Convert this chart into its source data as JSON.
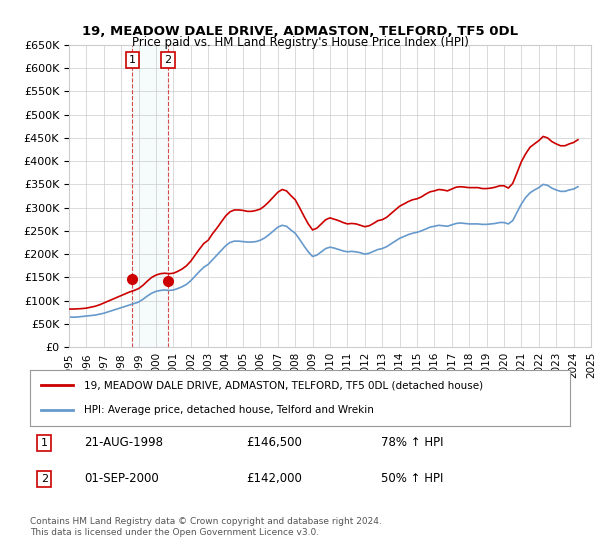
{
  "title": "19, MEADOW DALE DRIVE, ADMASTON, TELFORD, TF5 0DL",
  "subtitle": "Price paid vs. HM Land Registry's House Price Index (HPI)",
  "legend_line1": "19, MEADOW DALE DRIVE, ADMASTON, TELFORD, TF5 0DL (detached house)",
  "legend_line2": "HPI: Average price, detached house, Telford and Wrekin",
  "footer1": "Contains HM Land Registry data © Crown copyright and database right 2024.",
  "footer2": "This data is licensed under the Open Government Licence v3.0.",
  "annotation1_label": "1",
  "annotation1_date": "21-AUG-1998",
  "annotation1_price": "£146,500",
  "annotation1_hpi": "78% ↑ HPI",
  "annotation2_label": "2",
  "annotation2_date": "01-SEP-2000",
  "annotation2_price": "£142,000",
  "annotation2_hpi": "50% ↑ HPI",
  "sale1_year": 1998.64,
  "sale1_price": 146500,
  "sale2_year": 2000.67,
  "sale2_price": 142000,
  "red_color": "#cc0000",
  "blue_color": "#6699cc",
  "background_color": "#ffffff",
  "grid_color": "#cccccc",
  "ylim": [
    0,
    650000
  ],
  "yticks": [
    0,
    50000,
    100000,
    150000,
    200000,
    250000,
    300000,
    350000,
    400000,
    450000,
    500000,
    550000,
    600000,
    650000
  ],
  "hpi_data": {
    "years": [
      1995.0,
      1995.25,
      1995.5,
      1995.75,
      1996.0,
      1996.25,
      1996.5,
      1996.75,
      1997.0,
      1997.25,
      1997.5,
      1997.75,
      1998.0,
      1998.25,
      1998.5,
      1998.75,
      1999.0,
      1999.25,
      1999.5,
      1999.75,
      2000.0,
      2000.25,
      2000.5,
      2000.75,
      2001.0,
      2001.25,
      2001.5,
      2001.75,
      2002.0,
      2002.25,
      2002.5,
      2002.75,
      2003.0,
      2003.25,
      2003.5,
      2003.75,
      2004.0,
      2004.25,
      2004.5,
      2004.75,
      2005.0,
      2005.25,
      2005.5,
      2005.75,
      2006.0,
      2006.25,
      2006.5,
      2006.75,
      2007.0,
      2007.25,
      2007.5,
      2007.75,
      2008.0,
      2008.25,
      2008.5,
      2008.75,
      2009.0,
      2009.25,
      2009.5,
      2009.75,
      2010.0,
      2010.25,
      2010.5,
      2010.75,
      2011.0,
      2011.25,
      2011.5,
      2011.75,
      2012.0,
      2012.25,
      2012.5,
      2012.75,
      2013.0,
      2013.25,
      2013.5,
      2013.75,
      2014.0,
      2014.25,
      2014.5,
      2014.75,
      2015.0,
      2015.25,
      2015.5,
      2015.75,
      2016.0,
      2016.25,
      2016.5,
      2016.75,
      2017.0,
      2017.25,
      2017.5,
      2017.75,
      2018.0,
      2018.25,
      2018.5,
      2018.75,
      2019.0,
      2019.25,
      2019.5,
      2019.75,
      2020.0,
      2020.25,
      2020.5,
      2020.75,
      2021.0,
      2021.25,
      2021.5,
      2021.75,
      2022.0,
      2022.25,
      2022.5,
      2022.75,
      2023.0,
      2023.25,
      2023.5,
      2023.75,
      2024.0,
      2024.25
    ],
    "values": [
      65000,
      64500,
      65000,
      66000,
      67000,
      68000,
      69000,
      71000,
      73000,
      76000,
      79000,
      82000,
      85000,
      88000,
      91000,
      94000,
      97000,
      103000,
      110000,
      116000,
      120000,
      122000,
      123000,
      122000,
      123000,
      126000,
      130000,
      135000,
      143000,
      153000,
      163000,
      172000,
      178000,
      188000,
      198000,
      208000,
      218000,
      225000,
      228000,
      228000,
      227000,
      226000,
      226000,
      227000,
      230000,
      235000,
      242000,
      250000,
      258000,
      262000,
      260000,
      252000,
      245000,
      232000,
      218000,
      205000,
      195000,
      198000,
      205000,
      212000,
      215000,
      213000,
      210000,
      207000,
      205000,
      206000,
      205000,
      203000,
      200000,
      202000,
      206000,
      210000,
      212000,
      216000,
      222000,
      228000,
      234000,
      238000,
      242000,
      245000,
      247000,
      250000,
      254000,
      258000,
      260000,
      262000,
      261000,
      260000,
      263000,
      266000,
      267000,
      266000,
      265000,
      265000,
      265000,
      264000,
      264000,
      265000,
      266000,
      268000,
      268000,
      265000,
      272000,
      290000,
      308000,
      322000,
      332000,
      338000,
      343000,
      350000,
      348000,
      342000,
      338000,
      335000,
      335000,
      338000,
      340000,
      345000
    ]
  },
  "price_data": {
    "years": [
      1995.0,
      1995.25,
      1995.5,
      1995.75,
      1996.0,
      1996.25,
      1996.5,
      1996.75,
      1997.0,
      1997.25,
      1997.5,
      1997.75,
      1998.0,
      1998.25,
      1998.5,
      1998.75,
      1999.0,
      1999.25,
      1999.5,
      1999.75,
      2000.0,
      2000.25,
      2000.5,
      2000.75,
      2001.0,
      2001.25,
      2001.5,
      2001.75,
      2002.0,
      2002.25,
      2002.5,
      2002.75,
      2003.0,
      2003.25,
      2003.5,
      2003.75,
      2004.0,
      2004.25,
      2004.5,
      2004.75,
      2005.0,
      2005.25,
      2005.5,
      2005.75,
      2006.0,
      2006.25,
      2006.5,
      2006.75,
      2007.0,
      2007.25,
      2007.5,
      2007.75,
      2008.0,
      2008.25,
      2008.5,
      2008.75,
      2009.0,
      2009.25,
      2009.5,
      2009.75,
      2010.0,
      2010.25,
      2010.5,
      2010.75,
      2011.0,
      2011.25,
      2011.5,
      2011.75,
      2012.0,
      2012.25,
      2012.5,
      2012.75,
      2013.0,
      2013.25,
      2013.5,
      2013.75,
      2014.0,
      2014.25,
      2014.5,
      2014.75,
      2015.0,
      2015.25,
      2015.5,
      2015.75,
      2016.0,
      2016.25,
      2016.5,
      2016.75,
      2017.0,
      2017.25,
      2017.5,
      2017.75,
      2018.0,
      2018.25,
      2018.5,
      2018.75,
      2019.0,
      2019.25,
      2019.5,
      2019.75,
      2020.0,
      2020.25,
      2020.5,
      2020.75,
      2021.0,
      2021.25,
      2021.5,
      2021.75,
      2022.0,
      2022.25,
      2022.5,
      2022.75,
      2023.0,
      2023.25,
      2023.5,
      2023.75,
      2024.0,
      2024.25
    ],
    "values": [
      82000,
      82000,
      82500,
      83000,
      84000,
      86000,
      88000,
      91000,
      95000,
      99000,
      103000,
      107000,
      111000,
      115000,
      119000,
      122000,
      126000,
      133000,
      142000,
      150000,
      155000,
      158000,
      159000,
      158000,
      159000,
      163000,
      168000,
      175000,
      185000,
      198000,
      211000,
      223000,
      230000,
      244000,
      256000,
      269000,
      282000,
      291000,
      295000,
      295000,
      294000,
      292000,
      292000,
      294000,
      297000,
      304000,
      313000,
      323000,
      333000,
      339000,
      336000,
      326000,
      317000,
      300000,
      282000,
      265000,
      252000,
      256000,
      265000,
      274000,
      278000,
      275000,
      272000,
      268000,
      265000,
      266000,
      265000,
      262000,
      259000,
      261000,
      266000,
      272000,
      274000,
      279000,
      287000,
      295000,
      303000,
      308000,
      313000,
      317000,
      319000,
      323000,
      329000,
      334000,
      336000,
      339000,
      338000,
      336000,
      340000,
      344000,
      345000,
      344000,
      343000,
      343000,
      343000,
      341000,
      341000,
      342000,
      344000,
      347000,
      347000,
      342000,
      352000,
      375000,
      399000,
      416000,
      430000,
      437000,
      444000,
      453000,
      450000,
      442000,
      437000,
      433000,
      433000,
      437000,
      440000,
      446000
    ]
  },
  "xtick_years": [
    1995,
    1996,
    1997,
    1998,
    1999,
    2000,
    2001,
    2002,
    2003,
    2004,
    2005,
    2006,
    2007,
    2008,
    2009,
    2010,
    2011,
    2012,
    2013,
    2014,
    2015,
    2016,
    2017,
    2018,
    2019,
    2020,
    2021,
    2022,
    2023,
    2024,
    2025
  ]
}
